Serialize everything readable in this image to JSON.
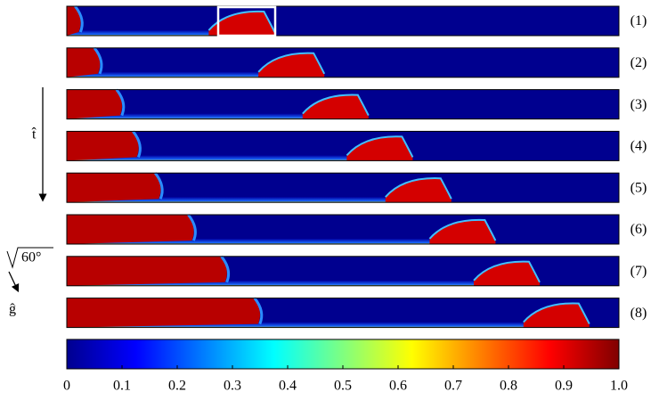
{
  "chart_data": {
    "type": "colorbar",
    "panel_labels": [
      "(1)",
      "(2)",
      "(3)",
      "(4)",
      "(5)",
      "(6)",
      "(7)",
      "(8)"
    ],
    "annotations": {
      "time": "t̂",
      "gravity": "ĝ",
      "angle": "60°"
    },
    "xlim": [
      0,
      1
    ],
    "xticks": [
      0,
      0.1,
      0.2,
      0.3,
      0.4,
      0.5,
      0.6,
      0.7,
      0.8,
      0.9,
      {
        "value": 1,
        "label": "1.0"
      }
    ]
  }
}
